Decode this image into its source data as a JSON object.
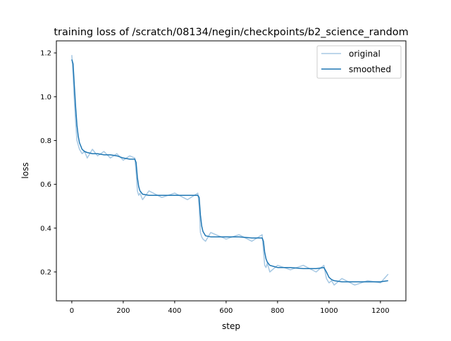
{
  "chart_data": {
    "type": "line",
    "title": "training loss of /scratch/08134/negin/checkpoints/b2_science_random",
    "xlabel": "step",
    "ylabel": "loss",
    "xlim": [
      -60,
      1299
    ],
    "ylim": [
      0.068,
      1.255
    ],
    "xticks": [
      0,
      200,
      400,
      600,
      800,
      1000,
      1200
    ],
    "yticks": [
      0.2,
      0.4,
      0.6,
      0.8,
      1.0,
      1.2
    ],
    "ytick_labels": [
      "0.2",
      "0.4",
      "0.6",
      "0.8",
      "1.0",
      "1.2"
    ],
    "grid": false,
    "legend_position": "top-right",
    "x": [
      0,
      5,
      10,
      15,
      20,
      25,
      30,
      40,
      50,
      60,
      80,
      100,
      125,
      150,
      175,
      200,
      225,
      245,
      250,
      255,
      260,
      265,
      275,
      300,
      350,
      400,
      450,
      490,
      495,
      500,
      505,
      510,
      520,
      540,
      600,
      650,
      700,
      740,
      745,
      750,
      755,
      760,
      770,
      800,
      850,
      900,
      950,
      980,
      990,
      1000,
      1010,
      1020,
      1050,
      1100,
      1150,
      1200,
      1230
    ],
    "series": [
      {
        "name": "original",
        "color": "#a6c8e3",
        "values": [
          1.19,
          1.1,
          0.98,
          0.88,
          0.8,
          0.78,
          0.76,
          0.74,
          0.75,
          0.72,
          0.76,
          0.73,
          0.75,
          0.72,
          0.74,
          0.71,
          0.73,
          0.72,
          0.66,
          0.57,
          0.55,
          0.56,
          0.53,
          0.57,
          0.54,
          0.56,
          0.53,
          0.56,
          0.5,
          0.38,
          0.36,
          0.35,
          0.34,
          0.38,
          0.35,
          0.37,
          0.34,
          0.37,
          0.3,
          0.23,
          0.22,
          0.24,
          0.2,
          0.23,
          0.21,
          0.23,
          0.2,
          0.23,
          0.17,
          0.15,
          0.16,
          0.14,
          0.17,
          0.14,
          0.16,
          0.15,
          0.19
        ]
      },
      {
        "name": "smoothed",
        "color": "#1f77b4",
        "values": [
          1.17,
          1.15,
          1.05,
          0.95,
          0.87,
          0.82,
          0.79,
          0.76,
          0.75,
          0.745,
          0.74,
          0.74,
          0.735,
          0.735,
          0.73,
          0.72,
          0.715,
          0.715,
          0.7,
          0.63,
          0.59,
          0.57,
          0.555,
          0.55,
          0.55,
          0.55,
          0.55,
          0.55,
          0.54,
          0.46,
          0.41,
          0.385,
          0.365,
          0.36,
          0.36,
          0.36,
          0.355,
          0.355,
          0.34,
          0.29,
          0.26,
          0.245,
          0.23,
          0.22,
          0.22,
          0.215,
          0.215,
          0.22,
          0.2,
          0.175,
          0.165,
          0.16,
          0.155,
          0.155,
          0.155,
          0.155,
          0.16
        ]
      }
    ]
  }
}
